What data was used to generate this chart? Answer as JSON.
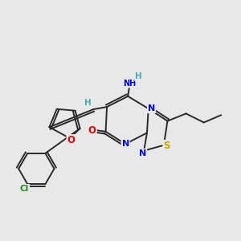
{
  "bg_color": "#e8e8e8",
  "bond_color": "#2a2a2a",
  "atom_colors": {
    "N": "#0000ee",
    "O": "#ee0000",
    "S": "#bbaa00",
    "Cl": "#228822",
    "C": "#2a2a2a",
    "H": "#4aadad"
  },
  "title": ""
}
